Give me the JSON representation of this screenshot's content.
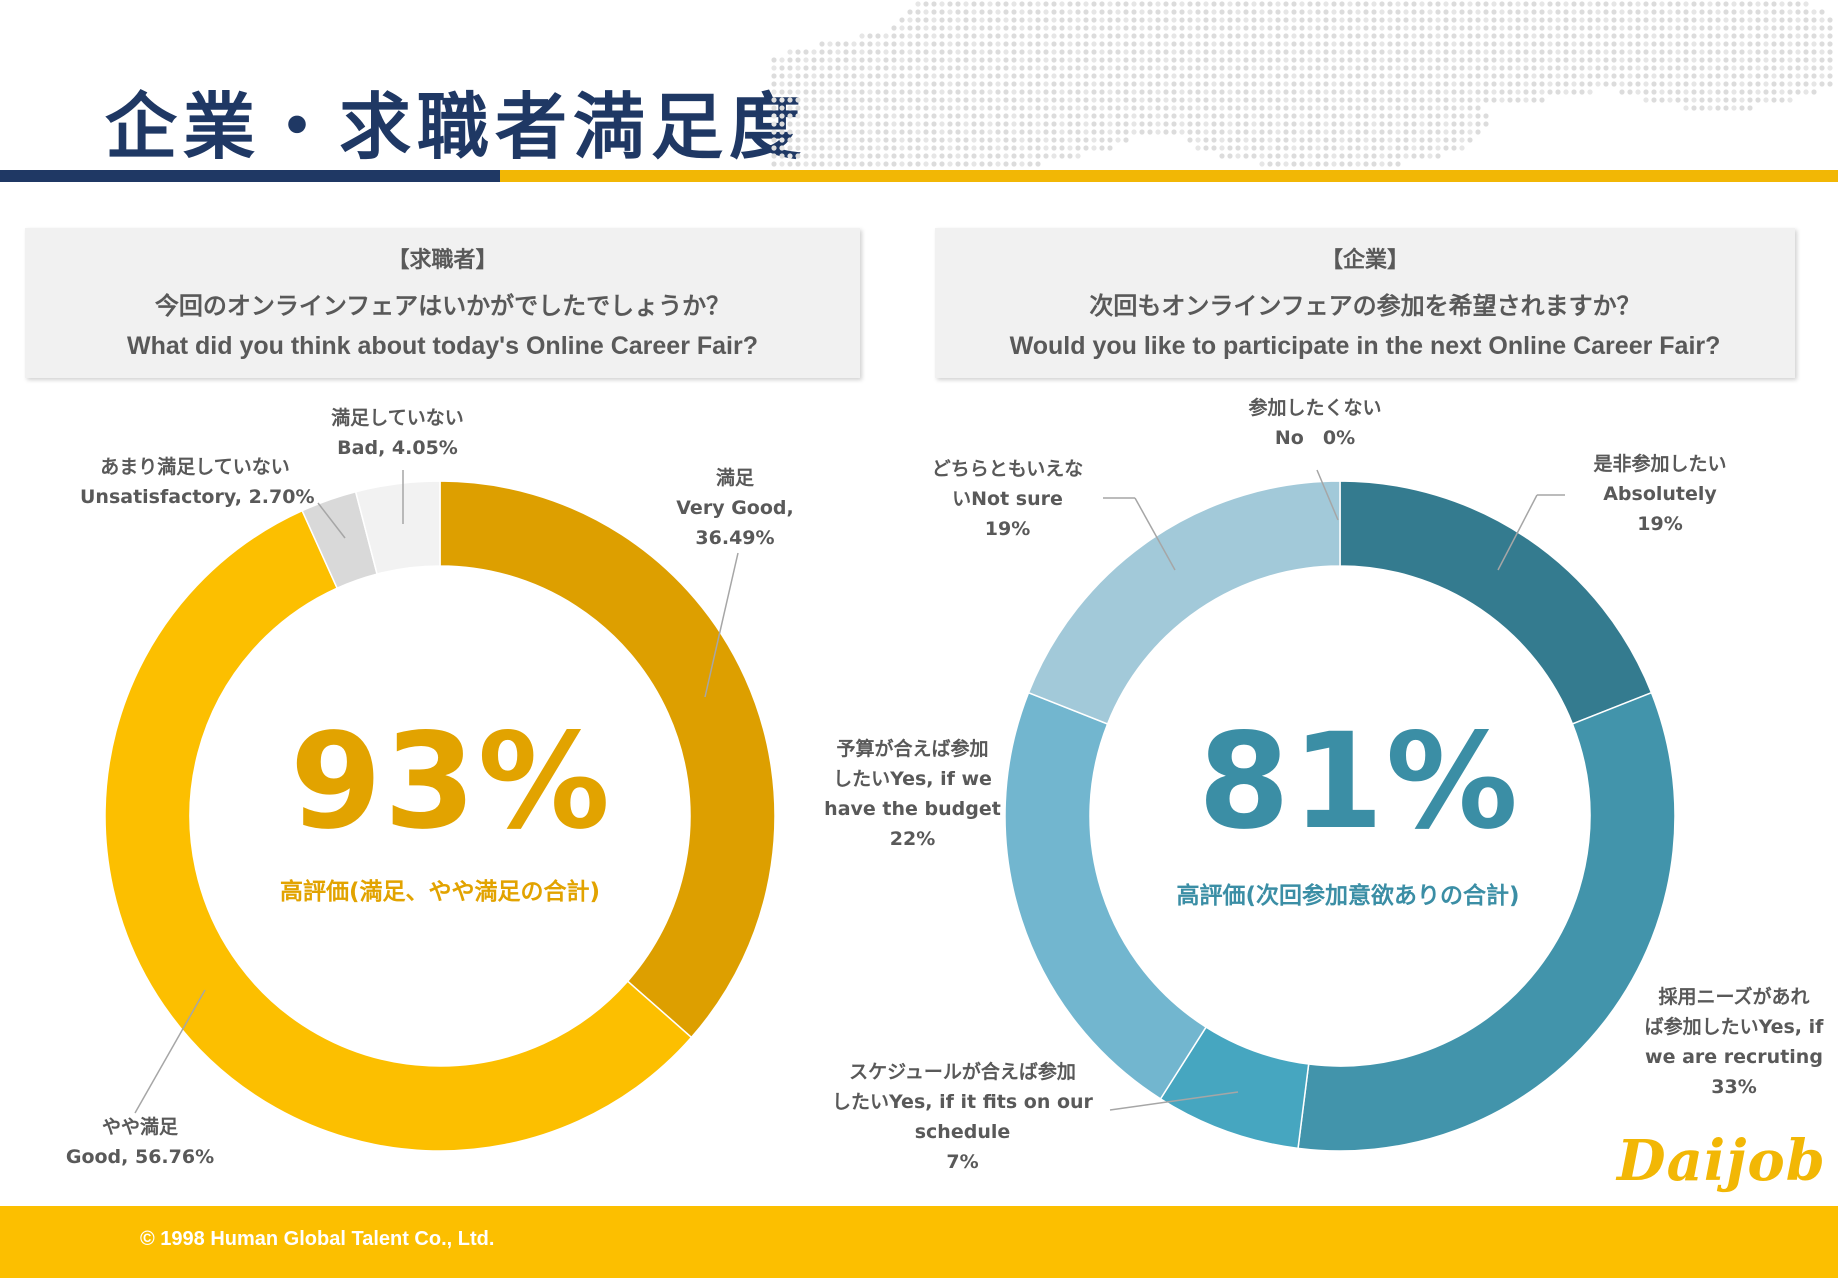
{
  "page": {
    "title": "企業・求職者満足度"
  },
  "left": {
    "tag": "【求職者】",
    "question_jp": "今回のオンラインフェアはいかがでしたでしょうか？",
    "question_en": "What did you think about today's Online Career Fair?",
    "big_value": "93%",
    "big_caption": "高評価(満足、やや満足の合計)",
    "big_color": "#e2a300",
    "labels": {
      "very_good": [
        "満足",
        "Very Good,",
        "36.49%"
      ],
      "good": [
        "やや満足",
        "Good, 56.76%"
      ],
      "unsatisfactory": [
        "あまり満足していない",
        "Unsatisfactory, 2.70%"
      ],
      "bad": [
        "満足していない",
        "Bad, 4.05%"
      ]
    }
  },
  "right": {
    "tag": "【企業】",
    "question_jp": "次回もオンラインフェアの参加を希望されますか？",
    "question_en": "Would you like to participate in the next Online Career Fair?",
    "big_value": "81%",
    "big_caption": "高評価(次回参加意欲ありの合計)",
    "big_color": "#3b8ea5",
    "labels": {
      "absolutely": [
        "是非参加したい",
        "Absolutely",
        "19%"
      ],
      "needs": [
        "採用ニーズがあれ",
        "ば参加したいYes, if",
        "we are recruting",
        "33%"
      ],
      "schedule": [
        "スケジュールが合えば参加",
        "したいYes, if it fits on our",
        "schedule",
        "7%"
      ],
      "budget": [
        "予算が合えば参加",
        "したいYes, if we",
        "have the budget",
        "22%"
      ],
      "not_sure": [
        "どちらともいえな",
        "いNot sure",
        "19%"
      ],
      "no": [
        "参加したくない",
        "No　0%"
      ]
    }
  },
  "footer": {
    "copyright": "© 1998 Human Global Talent  Co., Ltd."
  },
  "logo": {
    "text": "Daijob"
  },
  "chart_data": [
    {
      "type": "pie",
      "categories": [
        "Very Good",
        "Good",
        "Unsatisfactory",
        "Bad"
      ],
      "values": [
        36.49,
        56.76,
        2.7,
        4.05
      ],
      "colors": [
        "#dd9f00",
        "#fcbf00",
        "#d9d9d9",
        "#f2f2f2"
      ],
      "title": ""
    },
    {
      "type": "pie",
      "categories": [
        "Absolutely",
        "Yes, if we are recruting",
        "Yes, if it fits on our schedule",
        "Yes, if we have the budget",
        "Not sure",
        "No"
      ],
      "values": [
        19,
        33,
        7,
        22,
        19,
        0
      ],
      "colors": [
        "#347b8f",
        "#4294ab",
        "#46a6c0",
        "#72b6cf",
        "#a2c9d9",
        "#bfbfbf"
      ],
      "title": ""
    }
  ]
}
